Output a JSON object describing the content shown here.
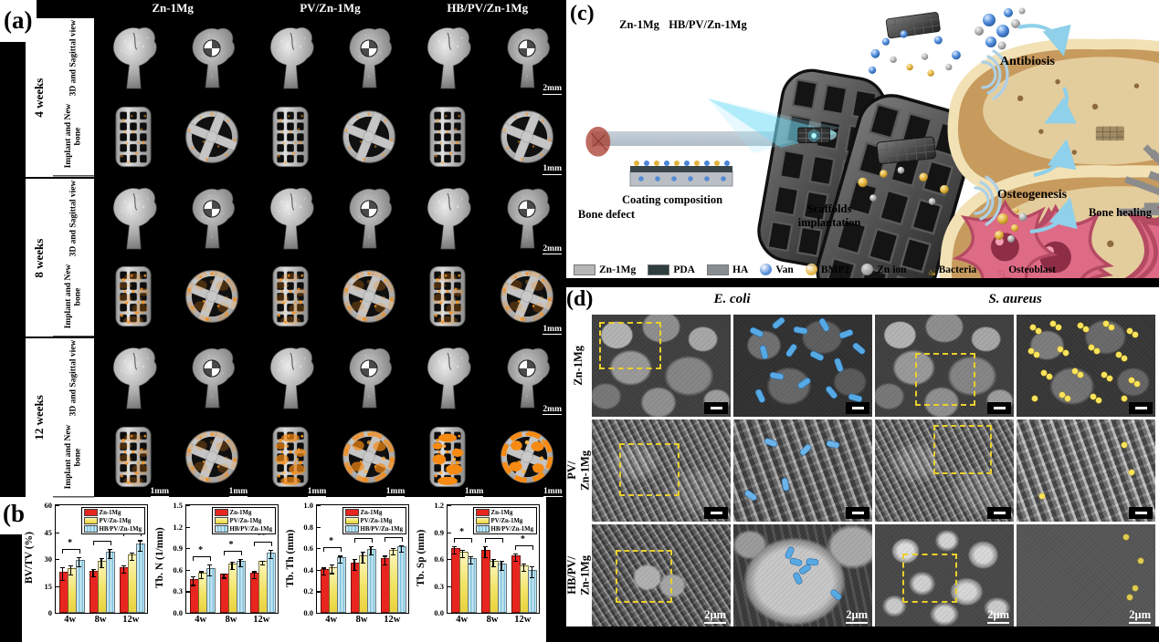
{
  "panel_a": {
    "label": "(a)",
    "column_headers": [
      "Zn-1Mg",
      "PV/Zn-1Mg",
      "HB/PV/Zn-1Mg"
    ],
    "groups": [
      {
        "week": "4 weeks"
      },
      {
        "week": "8 weeks"
      },
      {
        "week": "12 weeks"
      }
    ],
    "row_label_3d": "3D and Sagittal view",
    "row_label_implant": "Implant and New bone",
    "row_scales": [
      "2mm",
      "1mm",
      "2mm",
      "1mm",
      "2mm"
    ],
    "last_row_scale": "1mm"
  },
  "panel_b": {
    "label": "(b)"
  },
  "panel_c": {
    "label": "(c)",
    "scaffold_labels": [
      "Zn-1Mg",
      "HB/PV/Zn-1Mg"
    ],
    "bone_defect": "Bone defect",
    "coating": "Coating composition",
    "implantation": "Scaffolds\nimplantation",
    "antibiosis": "Antibiosis",
    "osteogenesis": "Osteogenesis",
    "bone_healing": "Bone healing",
    "legend": [
      {
        "name": "Zn-1Mg",
        "type": "rect",
        "color": "#b6b6b6"
      },
      {
        "name": "PDA",
        "type": "rect",
        "color": "#2f3e3e"
      },
      {
        "name": "HA",
        "type": "rect",
        "color": "#878d91"
      },
      {
        "name": "Van",
        "type": "sphere",
        "color": "#4a86d8"
      },
      {
        "name": "BMP2",
        "type": "sphere",
        "color": "#e2b33c"
      },
      {
        "name": "Zn ion",
        "type": "sphere",
        "color": "#9c9c9c"
      },
      {
        "name": "Bacteria",
        "type": "bacteria",
        "color": "#c9a52a"
      },
      {
        "name": "Osteoblast",
        "type": "osteoblast",
        "color": "#dd6b86"
      }
    ]
  },
  "panel_d": {
    "label": "(d)",
    "column_headers": [
      "E. coli",
      "S. aureus"
    ],
    "row_labels": [
      "Zn-1Mg",
      "PV/\nZn-1Mg",
      "HB/PV/\nZn-1Mg"
    ],
    "scale_label": "2μm"
  },
  "chart_data": [
    {
      "type": "bar",
      "title": "",
      "ylabel": "BV/TV (%)",
      "xlabel": "",
      "categories": [
        "4w",
        "8w",
        "12w"
      ],
      "ylim": [
        0,
        60
      ],
      "yticks": [
        "0",
        "15",
        "30",
        "45",
        "60"
      ],
      "grid": false,
      "legend_position": "top-right",
      "series": [
        {
          "name": "Zn-1Mg",
          "color": "#e8251f",
          "values": [
            22,
            22.5,
            24.5
          ],
          "errors": [
            3.5,
            2,
            2
          ]
        },
        {
          "name": "PV/Zn-1Mg",
          "color": "#f2e364",
          "values": [
            24,
            28,
            31.5
          ],
          "errors": [
            2.5,
            2.5,
            2
          ]
        },
        {
          "name": "HB/PV/Zn-1Mg",
          "color": "#a6d9ea",
          "values": [
            28.5,
            33,
            37.5
          ],
          "errors": [
            2.5,
            2.5,
            3
          ]
        }
      ],
      "significance": [
        "*",
        "*",
        "*"
      ]
    },
    {
      "type": "bar",
      "title": "",
      "ylabel": "Tb. N (1/mm)",
      "xlabel": "",
      "categories": [
        "4w",
        "8w",
        "12w"
      ],
      "ylim": [
        0,
        1.5
      ],
      "yticks": [
        "0.0",
        "0.3",
        "0.6",
        "0.9",
        "1.2",
        "1.5"
      ],
      "grid": false,
      "legend_position": "top-right",
      "series": [
        {
          "name": "Zn-1Mg",
          "color": "#e8251f",
          "values": [
            0.45,
            0.52,
            0.53
          ],
          "errors": [
            0.06,
            0.03,
            0.05
          ]
        },
        {
          "name": "PV/Zn-1Mg",
          "color": "#f2e364",
          "values": [
            0.53,
            0.66,
            0.7
          ],
          "errors": [
            0.05,
            0.05,
            0.03
          ]
        },
        {
          "name": "HB/PV/Zn-1Mg",
          "color": "#a6d9ea",
          "values": [
            0.6,
            0.7,
            0.82
          ],
          "errors": [
            0.08,
            0.05,
            0.06
          ]
        }
      ],
      "significance": [
        "*",
        "*",
        "**"
      ]
    },
    {
      "type": "bar",
      "title": "",
      "ylabel": "Tb. Th (mm)",
      "xlabel": "",
      "categories": [
        "4w",
        "8w",
        "12w"
      ],
      "ylim": [
        0,
        1.0
      ],
      "yticks": [
        "0.0",
        "0.2",
        "0.4",
        "0.6",
        "0.8",
        "1.0"
      ],
      "grid": false,
      "legend_position": "top-right",
      "series": [
        {
          "name": "Zn-1Mg",
          "color": "#e8251f",
          "values": [
            0.39,
            0.45,
            0.49
          ],
          "errors": [
            0.03,
            0.05,
            0.04
          ]
        },
        {
          "name": "PV/Zn-1Mg",
          "color": "#f2e364",
          "values": [
            0.41,
            0.52,
            0.57
          ],
          "errors": [
            0.04,
            0.05,
            0.03
          ]
        },
        {
          "name": "HB/PV/Zn-1Mg",
          "color": "#a6d9ea",
          "values": [
            0.5,
            0.58,
            0.6
          ],
          "errors": [
            0.03,
            0.04,
            0.03
          ]
        }
      ],
      "significance": [
        "*",
        "*",
        "*"
      ]
    },
    {
      "type": "bar",
      "title": "",
      "ylabel": "Tb. Sp (mm)",
      "xlabel": "",
      "categories": [
        "4w",
        "8w",
        "12w"
      ],
      "ylim": [
        0,
        1.2
      ],
      "yticks": [
        "0.0",
        "0.3",
        "0.6",
        "0.9",
        "1.2"
      ],
      "grid": false,
      "legend_position": "top-right",
      "series": [
        {
          "name": "Zn-1Mg",
          "color": "#e8251f",
          "values": [
            0.7,
            0.68,
            0.62
          ],
          "errors": [
            0.04,
            0.06,
            0.04
          ]
        },
        {
          "name": "PV/Zn-1Mg",
          "color": "#f2e364",
          "values": [
            0.66,
            0.56,
            0.51
          ],
          "errors": [
            0.04,
            0.04,
            0.04
          ]
        },
        {
          "name": "HB/PV/Zn-1Mg",
          "color": "#a6d9ea",
          "values": [
            0.59,
            0.53,
            0.46
          ],
          "errors": [
            0.04,
            0.05,
            0.06
          ]
        }
      ],
      "significance": [
        "*",
        "*",
        "*"
      ]
    }
  ]
}
